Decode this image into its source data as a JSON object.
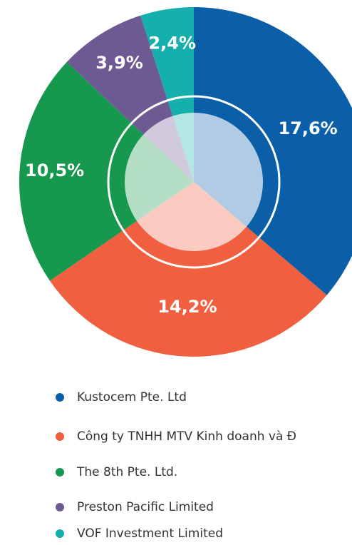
{
  "chart_data": {
    "type": "pie",
    "categories": [
      "Kustocem Pte. Ltd",
      "Công ty TNHH MTV Kinh doanh và Đ",
      "The 8th Pte. Ltd.",
      "Preston Pacific Limited",
      "VOF Investment Limited"
    ],
    "values": [
      17.6,
      14.2,
      10.5,
      3.9,
      2.4
    ],
    "value_labels": [
      "17,6%",
      "14,2%",
      "10,5%",
      "3,9%",
      "2,4%"
    ],
    "colors": [
      "#0b5fa9",
      "#f15f41",
      "#16984f",
      "#6e5a93",
      "#15b0ac"
    ]
  }
}
